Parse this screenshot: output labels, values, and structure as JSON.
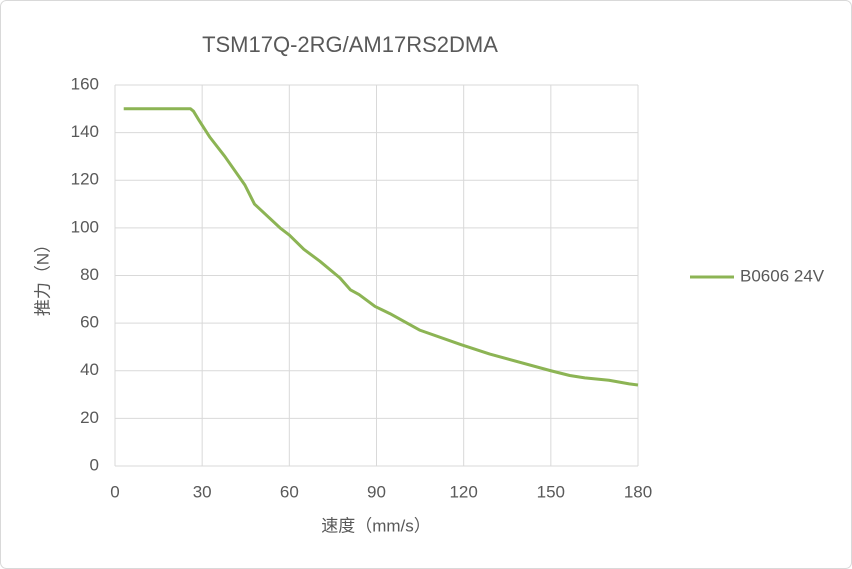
{
  "chart_data": {
    "type": "line",
    "title": "TSM17Q-2RG/AM17RS2DMA",
    "x_label": "速度（mm/s）",
    "y_label": "推力（N）",
    "x": [
      3,
      26,
      27,
      29,
      32.7,
      37.8,
      44.7,
      48,
      56.8,
      60,
      65,
      70.5,
      77.4,
      81,
      84,
      89.5,
      94.6,
      105,
      119,
      129,
      150,
      156.5,
      161.7,
      170,
      177,
      180
    ],
    "series": [
      {
        "name": "B0606 24V",
        "color": "#8cb454",
        "values": [
          150,
          150,
          149,
          145,
          138,
          130,
          118,
          110,
          100,
          97,
          91,
          86,
          79,
          74,
          72,
          67,
          64,
          57,
          51,
          47,
          40,
          38,
          37,
          36,
          34.5,
          34
        ]
      }
    ],
    "xlim": [
      0,
      180
    ],
    "xticks": [
      0,
      30,
      60,
      90,
      120,
      150,
      180
    ],
    "ylim": [
      0,
      160
    ],
    "yticks": [
      0,
      20,
      40,
      60,
      80,
      100,
      120,
      140,
      160
    ],
    "grid": true,
    "legend": "right"
  }
}
